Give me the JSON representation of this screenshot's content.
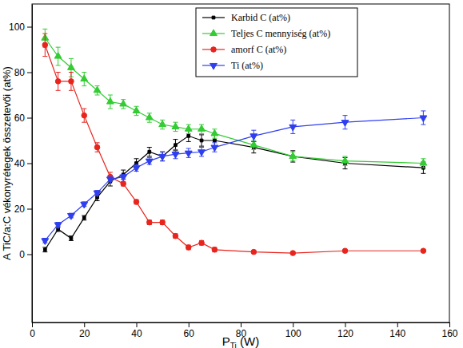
{
  "chart_data": {
    "type": "line",
    "xlabel": "PTi (W)",
    "ylabel": "A TiC/a:C vékonyrétegek összetevői (at%)",
    "x": [
      5,
      10,
      15,
      20,
      25,
      30,
      35,
      40,
      45,
      50,
      55,
      60,
      65,
      70,
      85,
      100,
      120,
      150
    ],
    "series": [
      {
        "name": "Karbid C (at%)",
        "color": "#000000",
        "marker": "square",
        "values": [
          2,
          11,
          7,
          16,
          25,
          32,
          35,
          40,
          45,
          43,
          48,
          52,
          50,
          50,
          47,
          43,
          40,
          38
        ],
        "errors": [
          1,
          1,
          1,
          1,
          1.5,
          2,
          2,
          2,
          2,
          2,
          2.5,
          2.5,
          2.5,
          2.5,
          2.5,
          2.5,
          2.5,
          2.5
        ]
      },
      {
        "name": "Teljes C mennyiség (at%)",
        "color": "#33cc33",
        "marker": "triangle-up",
        "values": [
          95,
          87,
          82,
          77,
          72,
          67,
          66,
          63,
          60,
          57,
          56,
          55,
          55,
          53,
          48,
          43,
          41,
          40
        ],
        "errors": [
          4,
          4,
          4,
          3,
          2,
          3,
          2,
          2,
          2,
          2,
          2,
          2,
          2,
          2,
          2,
          2,
          2,
          2
        ]
      },
      {
        "name": "amorf C (at%)",
        "color": "#e8241d",
        "marker": "circle",
        "values": [
          92,
          76,
          76,
          61,
          47,
          34,
          31,
          23,
          14,
          14,
          8,
          3,
          5,
          2,
          1,
          0.5,
          1.5,
          1.5
        ],
        "errors": [
          5,
          4,
          4,
          3,
          2,
          2,
          1,
          1,
          1,
          1,
          1,
          1,
          1,
          1,
          0.5,
          0.5,
          0.5,
          0.5
        ]
      },
      {
        "name": "Ti (at%)",
        "color": "#2f3ff0",
        "marker": "triangle-down",
        "values": [
          6,
          13,
          17,
          22,
          27,
          33,
          34,
          38,
          41,
          43,
          44,
          44.5,
          45,
          47,
          52,
          56,
          58,
          60
        ],
        "errors": [
          1,
          1,
          1,
          1,
          1,
          1,
          1,
          1.5,
          1.5,
          2,
          2,
          2,
          2,
          2,
          2.5,
          3,
          3,
          3
        ]
      }
    ],
    "xlim": [
      0,
      160
    ],
    "xticks": [
      0,
      20,
      40,
      60,
      80,
      100,
      120,
      140,
      160
    ],
    "ylim": [
      -30,
      110
    ],
    "yticks": [
      0,
      20,
      40,
      60,
      80,
      100
    ],
    "grid": false,
    "legend": "upper right"
  }
}
